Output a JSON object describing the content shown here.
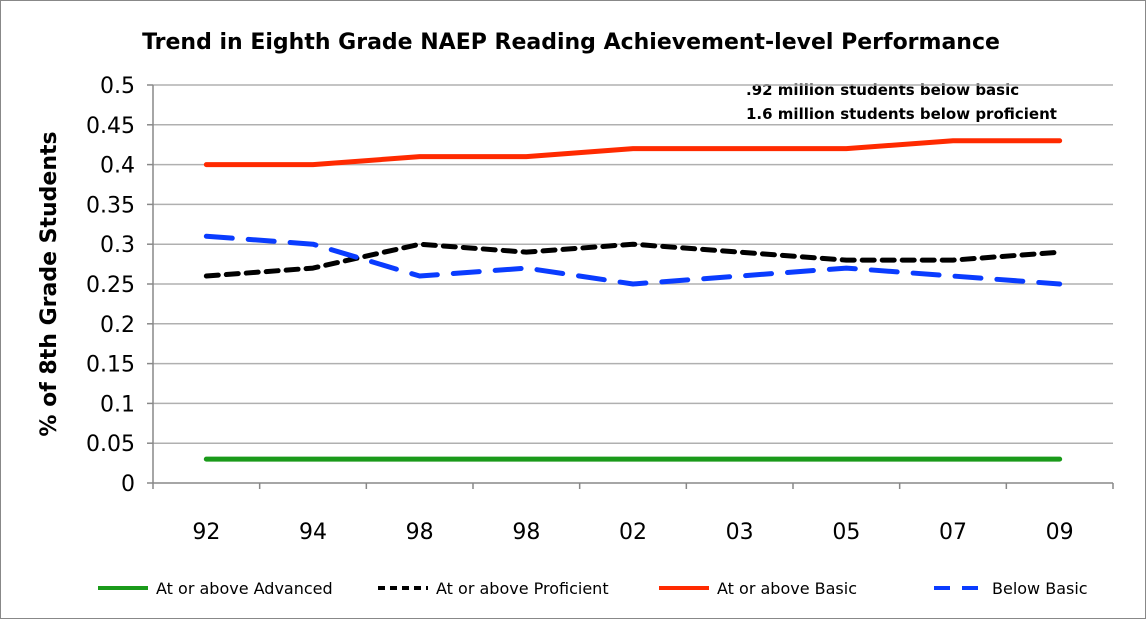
{
  "chart_data": {
    "type": "line",
    "title": "Trend in Eighth Grade NAEP Reading Achievement-level Performance",
    "xlabel": "",
    "ylabel": "% of 8th Grade Students",
    "ylim": [
      0,
      0.5
    ],
    "yticks": [
      "0",
      "0.05",
      "0.1",
      "0.15",
      "0.2",
      "0.25",
      "0.3",
      "0.35",
      "0.4",
      "0.45",
      "0.5"
    ],
    "ytick_values": [
      0,
      0.05,
      0.1,
      0.15,
      0.2,
      0.25,
      0.3,
      0.35,
      0.4,
      0.45,
      0.5
    ],
    "grid": true,
    "legend_position": "bottom",
    "categories": [
      "92",
      "94",
      "98",
      "98",
      "02",
      "03",
      "05",
      "07",
      "09"
    ],
    "series": [
      {
        "name": "At or above Advanced",
        "color": "#1a9a1a",
        "dash": "solid",
        "values": [
          0.03,
          0.03,
          0.03,
          0.03,
          0.03,
          0.03,
          0.03,
          0.03,
          0.03
        ]
      },
      {
        "name": "At or above Proficient",
        "color": "#000000",
        "dash": "short",
        "values": [
          0.26,
          0.27,
          0.3,
          0.29,
          0.3,
          0.29,
          0.28,
          0.28,
          0.29
        ]
      },
      {
        "name": "At or above Basic",
        "color": "#ff2a00",
        "dash": "solid",
        "values": [
          0.4,
          0.4,
          0.41,
          0.41,
          0.42,
          0.42,
          0.42,
          0.43,
          0.43
        ]
      },
      {
        "name": "Below Basic",
        "color": "#0a3cff",
        "dash": "long",
        "values": [
          0.31,
          0.3,
          0.26,
          0.27,
          0.25,
          0.26,
          0.27,
          0.26,
          0.25
        ]
      }
    ],
    "annotations": [
      ".92 million students below basic",
      "1.6 million students below proficient"
    ]
  }
}
